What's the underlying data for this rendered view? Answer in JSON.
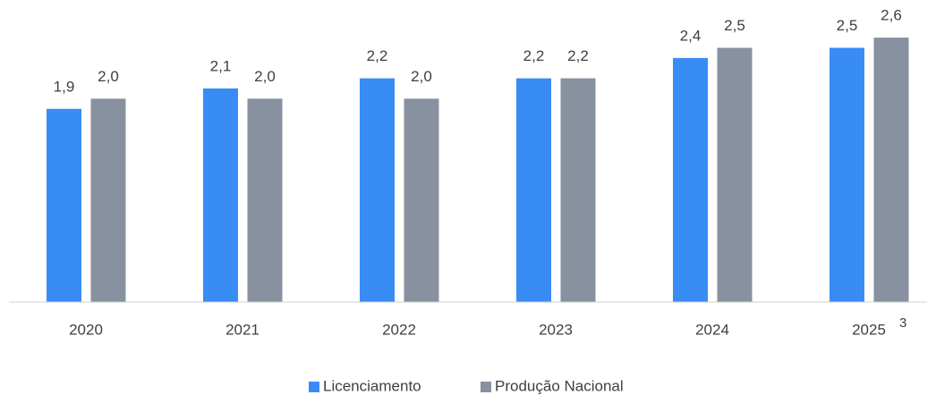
{
  "chart_data": {
    "type": "bar",
    "categories": [
      "2020",
      "2021",
      "2022",
      "2023",
      "2024",
      "2025"
    ],
    "annotations": [
      "3"
    ],
    "series": [
      {
        "name": "Licenciamento",
        "color": "#3a8cf5",
        "values": [
          1.9,
          2.1,
          2.2,
          2.2,
          2.4,
          2.5
        ],
        "value_labels": [
          "1,9",
          "2,1",
          "2,2",
          "2,2",
          "2,4",
          "2,5"
        ]
      },
      {
        "name": "Produção Nacional",
        "color": "#8891a0",
        "values": [
          2.0,
          2.0,
          2.0,
          2.2,
          2.5,
          2.6
        ],
        "value_labels": [
          "2,0",
          "2,0",
          "2,0",
          "2,2",
          "2,5",
          "2,6"
        ]
      }
    ],
    "ylim": [
      0,
      2.97
    ],
    "legend": "bottom"
  }
}
